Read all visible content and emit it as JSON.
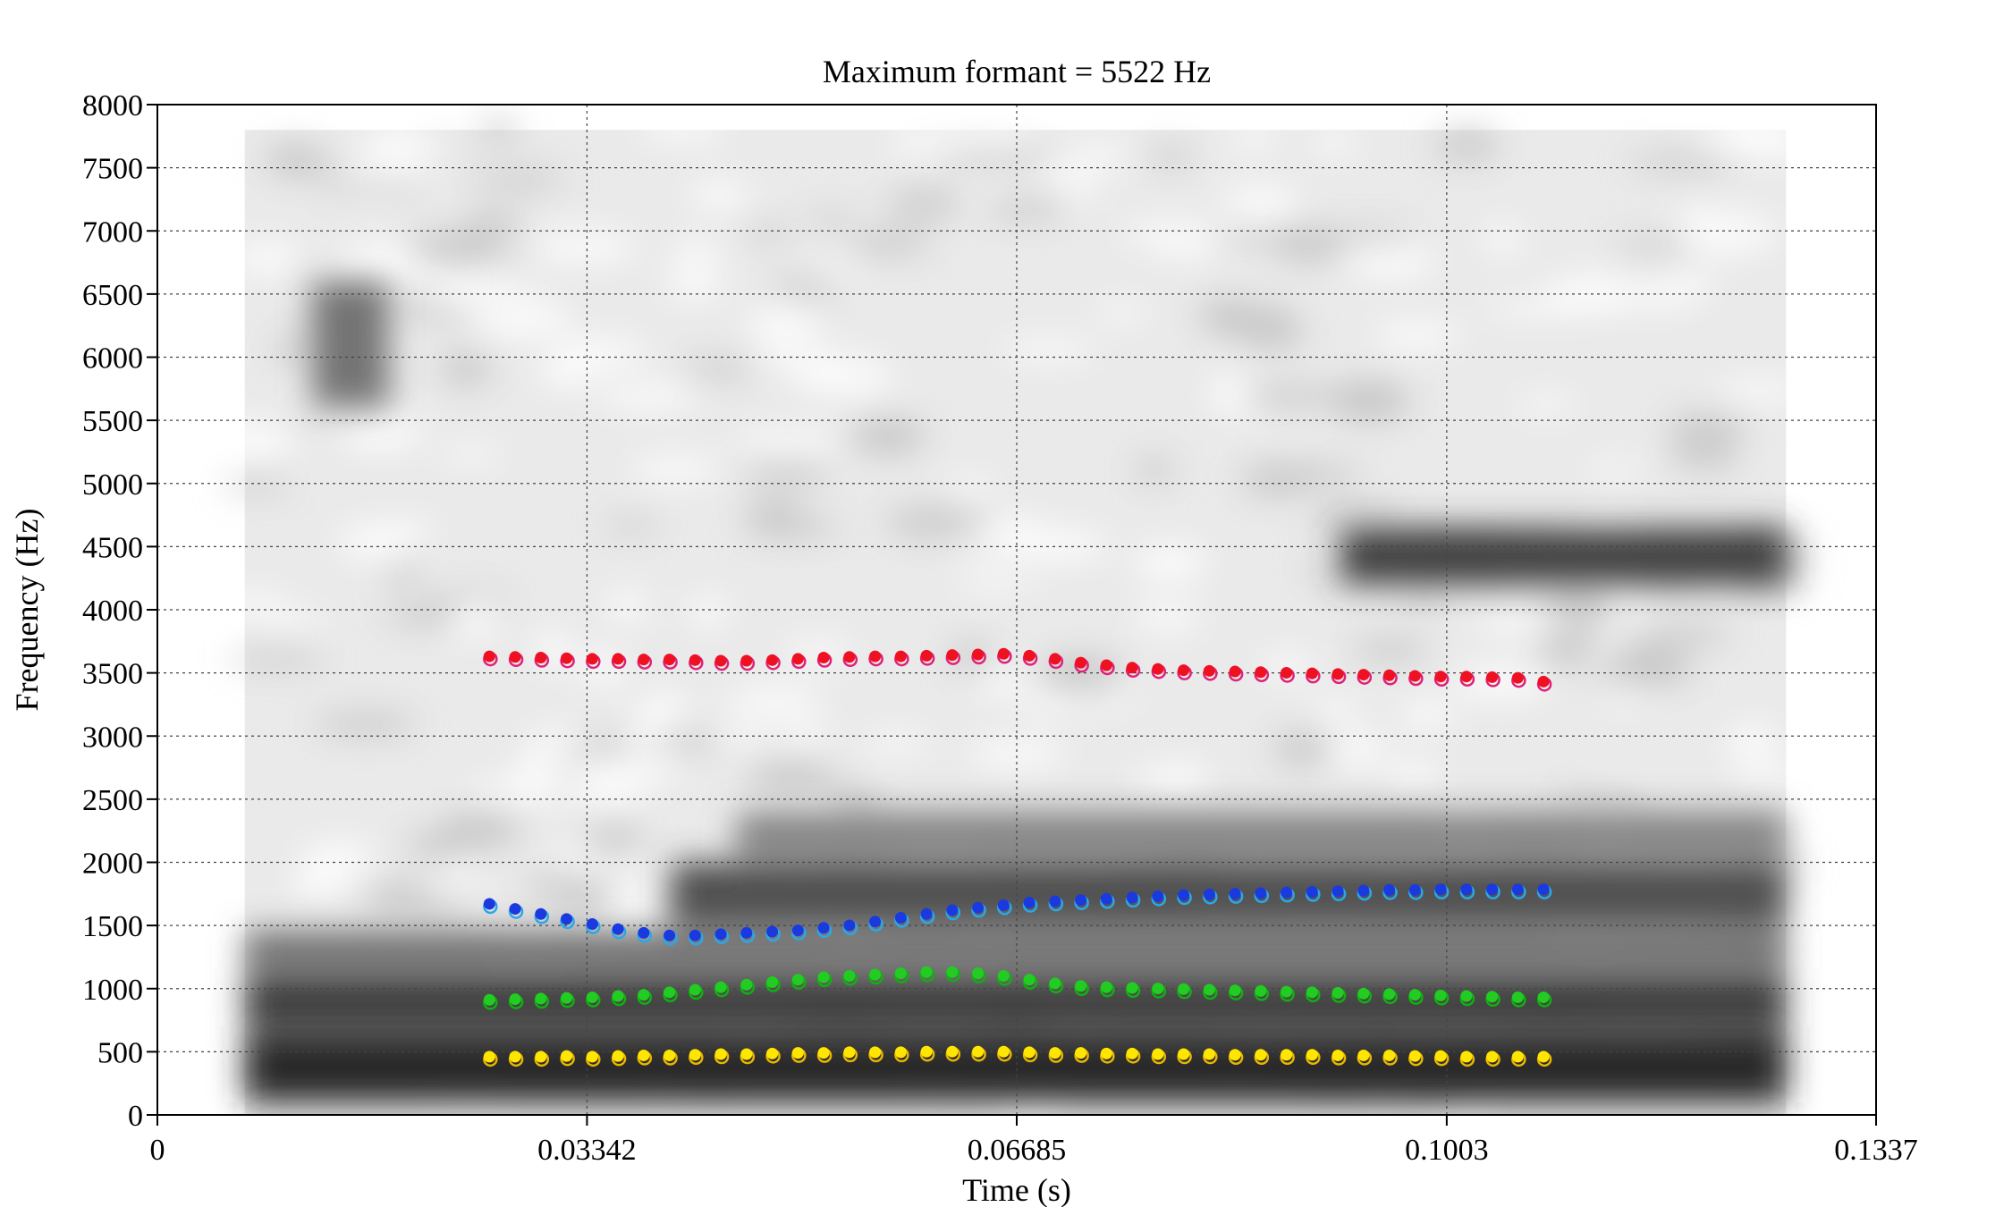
{
  "chart_data": {
    "type": "scatter",
    "title": "Maximum formant = 5522 Hz",
    "xlabel": "Time (s)",
    "ylabel": "Frequency (Hz)",
    "xlim": [
      0,
      0.1337
    ],
    "ylim": [
      0,
      8000
    ],
    "x_ticks": [
      "0",
      "0.03342",
      "0.06685",
      "0.1003",
      "0.1337"
    ],
    "y_ticks": [
      "0",
      "500",
      "1000",
      "1500",
      "2000",
      "2500",
      "3000",
      "3500",
      "4000",
      "4500",
      "5000",
      "5500",
      "6000",
      "6500",
      "7000",
      "7500",
      "8000"
    ],
    "grid": "dotted",
    "background": "spectrogram",
    "spectrogram": {
      "x_range": [
        0.0068,
        0.1267
      ],
      "y_range": [
        0,
        7800
      ],
      "dark_bands": [
        {
          "t_start": 0.0068,
          "t_end": 0.1267,
          "f_low": 100,
          "f_high": 650,
          "strength": 1.0
        },
        {
          "t_start": 0.0068,
          "t_end": 0.1267,
          "f_low": 700,
          "f_high": 1100,
          "strength": 0.9
        },
        {
          "t_start": 0.0068,
          "t_end": 0.1267,
          "f_low": 1150,
          "f_high": 1450,
          "strength": 0.55
        },
        {
          "t_start": 0.04,
          "t_end": 0.1267,
          "f_low": 1500,
          "f_high": 2000,
          "strength": 0.75
        },
        {
          "t_start": 0.045,
          "t_end": 0.1267,
          "f_low": 2050,
          "f_high": 2400,
          "strength": 0.4
        },
        {
          "t_start": 0.092,
          "t_end": 0.1267,
          "f_low": 4200,
          "f_high": 4650,
          "strength": 0.85
        },
        {
          "t_start": 0.012,
          "t_end": 0.018,
          "f_low": 5600,
          "f_high": 6600,
          "strength": 0.5
        }
      ]
    },
    "series": [
      {
        "color": "#e8b400",
        "fill": "#ffe600",
        "x": [
          0.0259,
          0.0279,
          0.0299,
          0.0319,
          0.0339,
          0.0359,
          0.0379,
          0.0399,
          0.0419,
          0.0439,
          0.0459,
          0.0479,
          0.0499,
          0.0519,
          0.0539,
          0.0559,
          0.0579,
          0.0599,
          0.0619,
          0.0639,
          0.0659,
          0.0679,
          0.0699,
          0.0719,
          0.0739,
          0.0759,
          0.0779,
          0.0799,
          0.0819,
          0.0839,
          0.0859,
          0.0879,
          0.0899,
          0.0919,
          0.0939,
          0.0959,
          0.0979,
          0.0999,
          0.1019,
          0.1039,
          0.1059,
          0.1079
        ],
        "y": [
          440,
          440,
          440,
          445,
          440,
          445,
          450,
          450,
          455,
          460,
          460,
          465,
          470,
          470,
          475,
          475,
          475,
          480,
          480,
          480,
          480,
          475,
          470,
          470,
          465,
          465,
          460,
          460,
          460,
          455,
          455,
          455,
          455,
          450,
          450,
          450,
          445,
          445,
          440,
          440,
          440,
          440
        ]
      },
      {
        "color": "#10b010",
        "fill": "#22cc22",
        "x": [
          0.0259,
          0.0279,
          0.0299,
          0.0319,
          0.0339,
          0.0359,
          0.0379,
          0.0399,
          0.0419,
          0.0439,
          0.0459,
          0.0479,
          0.0499,
          0.0519,
          0.0539,
          0.0559,
          0.0579,
          0.0599,
          0.0619,
          0.0639,
          0.0659,
          0.0679,
          0.0699,
          0.0719,
          0.0739,
          0.0759,
          0.0779,
          0.0799,
          0.0819,
          0.0839,
          0.0859,
          0.0879,
          0.0899,
          0.0919,
          0.0939,
          0.0959,
          0.0979,
          0.0999,
          0.1019,
          0.1039,
          0.1059,
          0.1079
        ],
        "y": [
          890,
          895,
          900,
          905,
          910,
          920,
          930,
          950,
          970,
          990,
          1010,
          1030,
          1050,
          1070,
          1080,
          1090,
          1100,
          1110,
          1110,
          1100,
          1080,
          1050,
          1020,
          1000,
          990,
          985,
          980,
          975,
          970,
          965,
          960,
          955,
          950,
          945,
          940,
          935,
          930,
          925,
          920,
          915,
          910,
          910
        ]
      },
      {
        "color": "#2aa8e6",
        "fill": "#1a3ae0",
        "x": [
          0.0259,
          0.0279,
          0.0299,
          0.0319,
          0.0339,
          0.0359,
          0.0379,
          0.0399,
          0.0419,
          0.0439,
          0.0459,
          0.0479,
          0.0499,
          0.0519,
          0.0539,
          0.0559,
          0.0579,
          0.0599,
          0.0619,
          0.0639,
          0.0659,
          0.0679,
          0.0699,
          0.0719,
          0.0739,
          0.0759,
          0.0779,
          0.0799,
          0.0819,
          0.0839,
          0.0859,
          0.0879,
          0.0899,
          0.0919,
          0.0939,
          0.0959,
          0.0979,
          0.0999,
          0.1019,
          0.1039,
          0.1059,
          0.1079
        ],
        "y": [
          1650,
          1610,
          1570,
          1530,
          1490,
          1450,
          1420,
          1400,
          1400,
          1410,
          1420,
          1430,
          1440,
          1460,
          1480,
          1510,
          1540,
          1570,
          1600,
          1620,
          1640,
          1660,
          1670,
          1680,
          1690,
          1700,
          1710,
          1720,
          1725,
          1730,
          1735,
          1740,
          1745,
          1750,
          1755,
          1760,
          1760,
          1765,
          1765,
          1765,
          1765,
          1765
        ]
      },
      {
        "color": "#e0207a",
        "fill": "#ee1122",
        "x": [
          0.0259,
          0.0279,
          0.0299,
          0.0319,
          0.0339,
          0.0359,
          0.0379,
          0.0399,
          0.0419,
          0.0439,
          0.0459,
          0.0479,
          0.0499,
          0.0519,
          0.0539,
          0.0559,
          0.0579,
          0.0599,
          0.0619,
          0.0639,
          0.0659,
          0.0679,
          0.0699,
          0.0719,
          0.0739,
          0.0759,
          0.0779,
          0.0799,
          0.0819,
          0.0839,
          0.0859,
          0.0879,
          0.0899,
          0.0919,
          0.0939,
          0.0959,
          0.0979,
          0.0999,
          0.1019,
          0.1039,
          0.1059,
          0.1079
        ],
        "y": [
          3610,
          3605,
          3600,
          3595,
          3590,
          3590,
          3585,
          3585,
          3580,
          3575,
          3575,
          3580,
          3590,
          3600,
          3605,
          3610,
          3610,
          3615,
          3620,
          3625,
          3630,
          3615,
          3590,
          3560,
          3540,
          3520,
          3510,
          3500,
          3495,
          3490,
          3485,
          3480,
          3475,
          3470,
          3465,
          3460,
          3455,
          3450,
          3450,
          3445,
          3440,
          3410
        ]
      }
    ]
  }
}
